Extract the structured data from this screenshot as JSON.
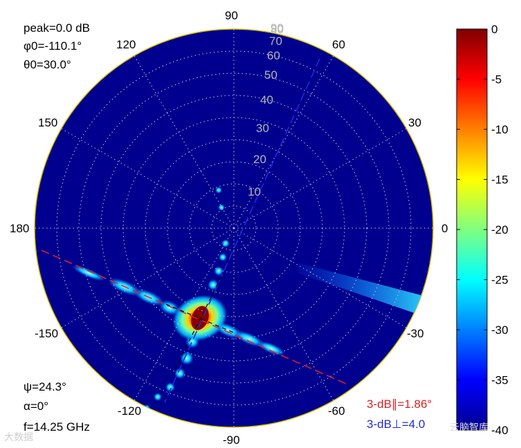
{
  "chart_data": {
    "type": "heatmap",
    "projection": "polar",
    "angle_labels": [
      "0",
      "30",
      "60",
      "90",
      "120",
      "150",
      "180",
      "-150",
      "-120",
      "-90",
      "-60",
      "-30"
    ],
    "radial_labels": [
      "10",
      "20",
      "30",
      "40",
      "50",
      "60",
      "70",
      "80",
      "90"
    ],
    "radial_range": [
      0,
      90
    ],
    "colorbar": {
      "ticks": [
        "0",
        "-5",
        "-10",
        "-15",
        "-20",
        "-25",
        "-30",
        "-35",
        "-40"
      ],
      "range": [
        -40,
        0
      ],
      "colormap": "jet"
    },
    "grid": "dotted",
    "annotations_top_left": {
      "peak": "peak=0.0 dB",
      "phi": "φ0=-110.1°",
      "theta": "θ0=30.0°"
    },
    "annotations_bottom_left": {
      "psi": "ψ=24.3°",
      "alpha": "α=0°",
      "freq": "f=14.25 GHz"
    },
    "annotations_bottom_right": {
      "par": "3-dB∥=1.86°",
      "perp": "3-dB⊥=4.0"
    },
    "peak": {
      "phi_deg": -110.1,
      "theta_deg": 30.0,
      "value_db": 0.0
    },
    "colors": {
      "background": "#00008f",
      "par_cut": "#e02020",
      "perp_cut": "#1f2bd6",
      "rim": "#d8c200",
      "grid": "#c8c8c8"
    }
  },
  "watermark": {
    "left": "大数据",
    "right": "云脑智库"
  }
}
